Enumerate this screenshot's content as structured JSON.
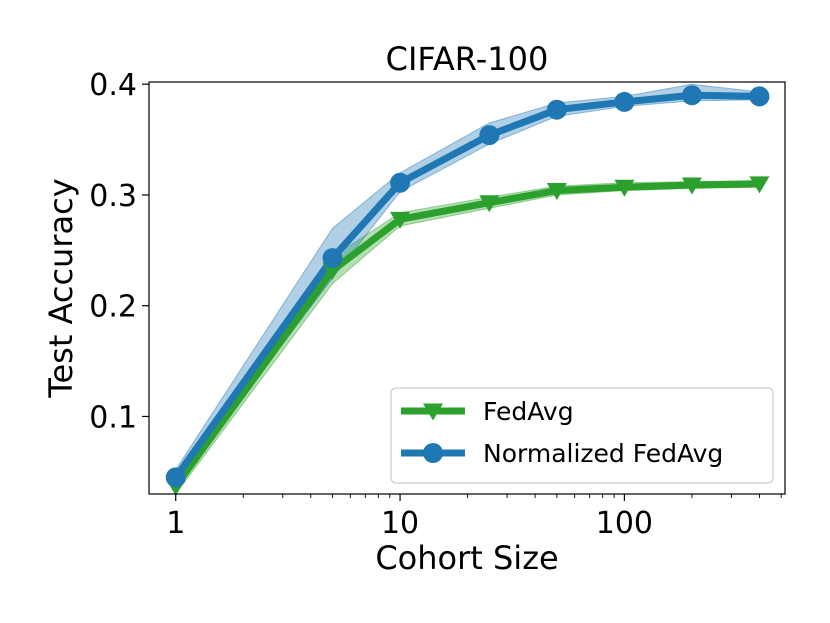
{
  "chart_data": {
    "type": "line",
    "title": "CIFAR-100",
    "xlabel": "Cohort Size",
    "ylabel": "Test Accuracy",
    "xscale": "log",
    "xlim": [
      0.76,
      520
    ],
    "ylim": [
      0.03,
      0.402
    ],
    "xticks": [
      1,
      10,
      100
    ],
    "xtick_labels": [
      "1",
      "10",
      "100"
    ],
    "yticks": [
      0.1,
      0.2,
      0.3,
      0.4
    ],
    "ytick_labels": [
      "0.1",
      "0.2",
      "0.3",
      "0.4"
    ],
    "grid": false,
    "legend_position": "lower-right",
    "series": [
      {
        "name": "FedAvg",
        "color": "#2ca02c",
        "marker": "triangle-down",
        "x": [
          1,
          5,
          10,
          25,
          50,
          100,
          200,
          400
        ],
        "y": [
          0.037,
          0.232,
          0.278,
          0.293,
          0.304,
          0.307,
          0.309,
          0.31
        ],
        "y_low": [
          0.03,
          0.22,
          0.272,
          0.288,
          0.3,
          0.304,
          0.306,
          0.307
        ],
        "y_high": [
          0.044,
          0.244,
          0.284,
          0.298,
          0.308,
          0.311,
          0.312,
          0.313
        ]
      },
      {
        "name": "Normalized FedAvg",
        "color": "#1f77b4",
        "marker": "circle",
        "x": [
          1,
          5,
          10,
          25,
          50,
          100,
          200,
          400
        ],
        "y": [
          0.045,
          0.243,
          0.311,
          0.354,
          0.377,
          0.384,
          0.39,
          0.389
        ],
        "y_low": [
          0.038,
          0.225,
          0.303,
          0.346,
          0.371,
          0.38,
          0.385,
          0.386
        ],
        "y_high": [
          0.052,
          0.27,
          0.32,
          0.365,
          0.383,
          0.389,
          0.4,
          0.393
        ]
      }
    ]
  }
}
